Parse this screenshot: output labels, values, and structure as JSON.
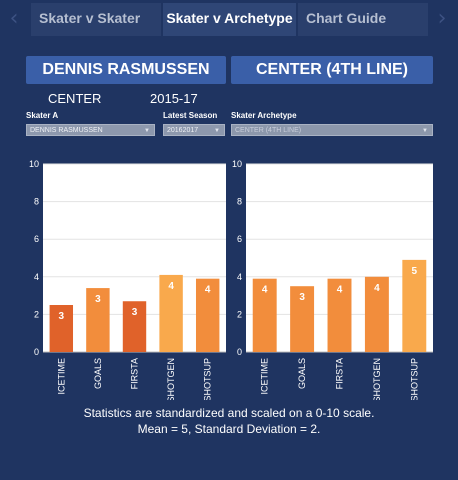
{
  "tabs": [
    {
      "label": "Skater v Skater",
      "active": false
    },
    {
      "label": "Skater v Archetype",
      "active": true
    },
    {
      "label": "Chart Guide",
      "active": false
    }
  ],
  "left": {
    "banner": "DENNIS RASMUSSEN",
    "position": "CENTER",
    "seasons": "2015-17"
  },
  "right": {
    "banner": "CENTER (4TH LINE)"
  },
  "filters": {
    "skater_label": "Skater A",
    "skater_value": "DENNIS RASMUSSEN",
    "season_label": "Latest Season",
    "season_value": "20162017",
    "archetype_label": "Skater Archetype",
    "archetype_value": "CENTER (4TH LINE)"
  },
  "colors": {
    "dark_orange": "#e0622a",
    "mid_orange": "#f28d3c",
    "light_orange": "#f9a94c"
  },
  "chart_data": [
    {
      "type": "bar",
      "categories": [
        "ICETIME",
        "GOALS",
        "FIRSTA",
        "SHOTGEN",
        "SHOTSUP"
      ],
      "values": [
        2.5,
        3.4,
        2.7,
        4.1,
        3.9
      ],
      "labels": [
        "3",
        "3",
        "3",
        "4",
        "4"
      ],
      "colors": [
        "#e0622a",
        "#f28d3c",
        "#e0622a",
        "#f9a94c",
        "#f28d3c"
      ],
      "yticks": [
        0,
        2,
        4,
        6,
        8,
        10
      ],
      "ylim": [
        0,
        10
      ],
      "grid": true
    },
    {
      "type": "bar",
      "categories": [
        "ICETIME",
        "GOALS",
        "FIRSTA",
        "SHOTGEN",
        "SHOTSUP"
      ],
      "values": [
        3.9,
        3.5,
        3.9,
        4.0,
        4.9
      ],
      "labels": [
        "4",
        "3",
        "4",
        "4",
        "5"
      ],
      "colors": [
        "#f28d3c",
        "#f28d3c",
        "#f28d3c",
        "#f28d3c",
        "#f9a94c"
      ],
      "yticks": [
        0,
        2,
        4,
        6,
        8,
        10
      ],
      "ylim": [
        0,
        10
      ],
      "grid": true
    }
  ],
  "footnote": {
    "line1": "Statistics are standardized and scaled on a 0-10 scale.",
    "line2": "Mean = 5, Standard Deviation = 2."
  }
}
